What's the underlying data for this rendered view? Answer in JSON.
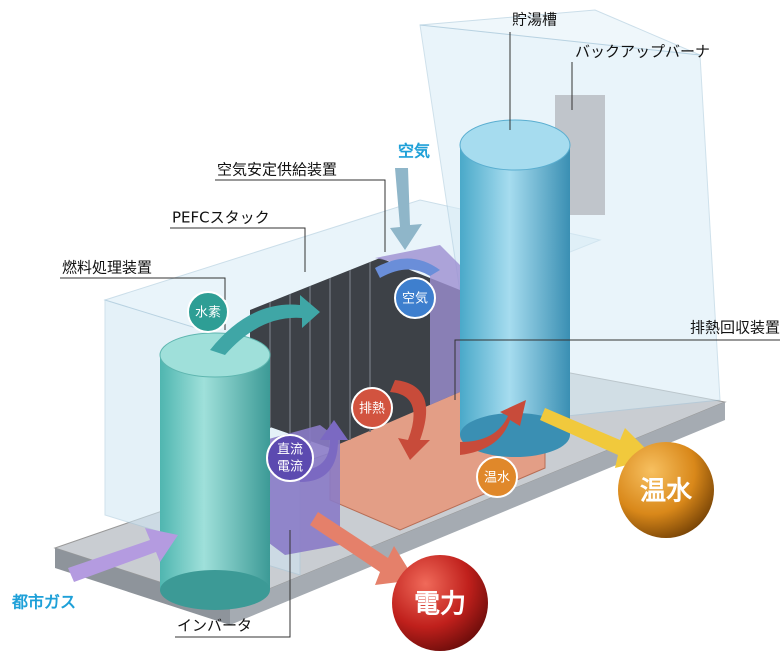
{
  "callouts": {
    "tank": "貯湯槽",
    "backup_burner": "バックアップバーナ",
    "air_supply": "空気安定供給装置",
    "pefc_stack": "PEFCスタック",
    "fuel_processor": "燃料処理装置",
    "heat_recovery": "排熱回収装置",
    "inverter": "インバータ"
  },
  "inputs": {
    "air": "空気",
    "city_gas": "都市ガス"
  },
  "badges": {
    "hydrogen": "水素",
    "air": "空気",
    "exhaust_heat": "排熱",
    "direct_current": [
      "直流",
      "電流"
    ],
    "hot_water": "温水"
  },
  "outputs": {
    "power": "電力",
    "hot_water": "温水"
  }
}
